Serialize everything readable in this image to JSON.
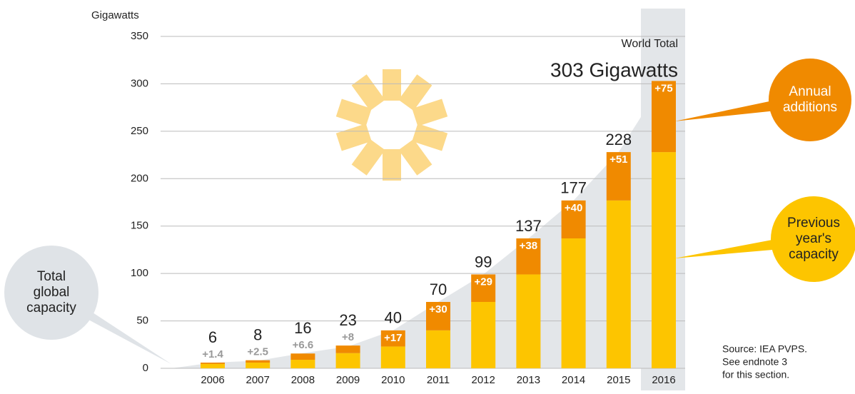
{
  "chart_data": {
    "type": "stacked_bar",
    "y_axis_label": "Gigawatts",
    "categories": [
      "2006",
      "2007",
      "2008",
      "2009",
      "2010",
      "2011",
      "2012",
      "2013",
      "2014",
      "2015",
      "2016"
    ],
    "series": [
      {
        "name": "Previous year's capacity",
        "color": "#fdc500",
        "values": [
          4.6,
          6,
          9,
          16,
          23,
          40,
          70,
          99,
          137,
          177,
          228
        ]
      },
      {
        "name": "Annual additions",
        "color": "#f08a00",
        "values": [
          1.4,
          2.5,
          6.6,
          8,
          17,
          30,
          29,
          38,
          40,
          51,
          75
        ],
        "value_labels": [
          "+1.4",
          "+2.5",
          "+6.6",
          "+8",
          "+17",
          "+30",
          "+29",
          "+38",
          "+40",
          "+51",
          "+75"
        ]
      }
    ],
    "totals": {
      "name": "Total global capacity",
      "values": [
        6,
        8,
        16,
        23,
        40,
        70,
        99,
        137,
        177,
        228,
        303
      ],
      "value_labels": [
        "6",
        "8",
        "16",
        "23",
        "40",
        "70",
        "99",
        "137",
        "177",
        "228",
        "303 Gigawatts"
      ]
    },
    "annotation": "World Total",
    "source": [
      "Source: IEA PVPS.",
      "See endnote 3",
      "for this section."
    ],
    "ylim": [
      0,
      350
    ],
    "yticks": [
      0,
      50,
      100,
      150,
      200,
      250,
      300,
      350
    ],
    "grid": true
  }
}
